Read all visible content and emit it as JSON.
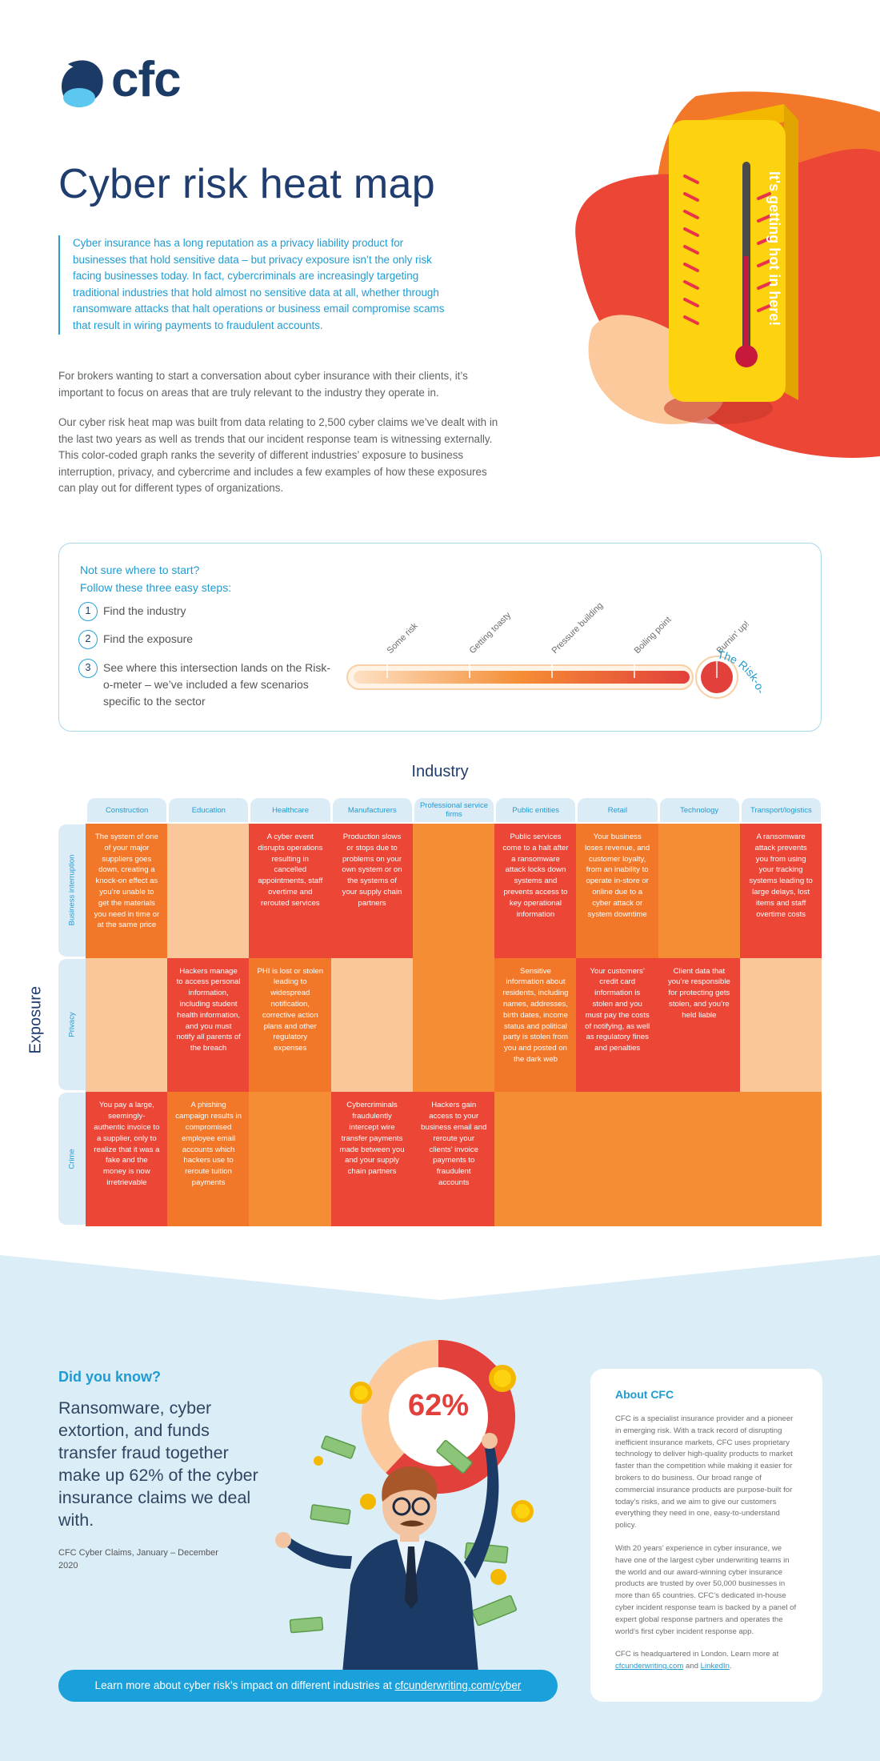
{
  "brand": {
    "name": "cfc"
  },
  "header": {
    "title": "Cyber risk heat map",
    "lead": "Cyber insurance has a long reputation as a privacy liability product for businesses that hold sensitive data – but privacy exposure isn’t the only risk facing businesses today. In fact, cybercriminals are increasingly targeting traditional industries that hold almost no sensitive data at all, whether through ransomware attacks that halt operations or business email compromise scams that result in wiring payments to fraudulent accounts.",
    "paragraph1": "For brokers wanting to start a conversation about cyber insurance with their clients, it’s important to focus on areas that are truly relevant to the industry they operate in.",
    "paragraph2": "Our cyber risk heat map was built from data relating to 2,500 cyber claims we’ve dealt with in the last two years as well as trends that our incident response team is witnessing externally. This color-coded graph ranks the severity of different industries’ exposure to business interruption, privacy, and cybercrime and includes a few examples of how these exposures can play out for different types of organizations.",
    "thermometer_text": "It's getting hot in here!"
  },
  "steps": {
    "heading_line1": "Not sure where to start?",
    "heading_line2": "Follow these three easy steps:",
    "items": [
      {
        "num": "1",
        "text": "Find the industry"
      },
      {
        "num": "2",
        "text": "Find the exposure"
      },
      {
        "num": "3",
        "text": "See where this intersection lands on the Risk-o-meter – we’ve included a few scenarios specific to the sector"
      }
    ],
    "meter": {
      "title": "The Risk-o-meter",
      "levels": [
        "Some risk",
        "Getting toasty",
        "Pressure building",
        "Boiling point",
        "Burnin' up!"
      ]
    }
  },
  "heatmap": {
    "x_title": "Industry",
    "y_title": "Exposure",
    "industries": [
      "Construction",
      "Education",
      "Healthcare",
      "Manufacturers",
      "Professional service firms",
      "Public entities",
      "Retail",
      "Technology",
      "Transport/logistics"
    ],
    "exposures": [
      "Business interruption",
      "Privacy",
      "Crime"
    ],
    "level_colors": {
      "1": "#fac79a",
      "2": "#f58d35",
      "3": "#f27729",
      "4": "#ec4636"
    },
    "levels": [
      [
        3,
        1,
        4,
        4,
        2,
        4,
        3,
        2,
        4
      ],
      [
        1,
        4,
        3,
        1,
        2,
        3,
        4,
        4,
        1
      ],
      [
        4,
        3,
        2,
        4,
        4,
        2,
        2,
        2,
        2
      ]
    ],
    "scenarios": [
      [
        "The system of one of your major suppliers goes down, creating a knock-on effect as you’re unable to get the materials you need in time or at the same price",
        "",
        "A cyber event disrupts operations resulting in cancelled appointments, staff overtime and rerouted services",
        "Production slows or stops due to problems on your own system or on the systems of your supply chain partners",
        "",
        "Public services come to a halt after a ransomware attack locks down systems and prevents access to key operational information",
        "Your business loses revenue, and customer loyalty, from an inability to operate in-store or online due to a cyber attack or system downtime",
        "",
        "A ransomware attack prevents you from using your tracking systems leading to large delays, lost items and staff overtime costs"
      ],
      [
        "",
        "Hackers manage to access personal information, including student health information, and you must notify all parents of the breach",
        "PHI is lost or stolen leading to widespread notification, corrective action plans and other regulatory expenses",
        "",
        "",
        "Sensitive information about residents, including names, addresses, birth dates, income status and political party is stolen from you and posted on the dark web",
        "Your customers’ credit card information is stolen and you must pay the costs of notifying, as well as regulatory fines and penalties",
        "Client data that you’re responsible for protecting gets stolen, and you’re held liable",
        ""
      ],
      [
        "You pay a large, seemingly-authentic invoice to a supplier, only to realize that it was a fake and the money is now irretrievable",
        "A phishing campaign results in compromised employee email accounts which hackers use to reroute tuition payments",
        "",
        "Cybercriminals fraudulently intercept wire transfer payments made between you and your supply chain partners",
        "Hackers gain access to your business email and reroute your clients’ invoice payments to fraudulent accounts",
        "",
        "",
        "",
        ""
      ]
    ]
  },
  "did_you_know": {
    "label": "Did you know?",
    "text": "Ransomware, cyber extortion, and funds transfer fraud together make up 62% of the cyber insurance claims we deal with.",
    "source": "CFC Cyber Claims, January – December 2020",
    "percent_label": "62%",
    "percent_value": 62
  },
  "cta": {
    "text": "Learn more about cyber risk’s impact on different industries at ",
    "link": "cfcunderwriting.com/cyber"
  },
  "about": {
    "title": "About CFC",
    "p1": "CFC is a specialist insurance provider and a pioneer in emerging risk. With a track record of disrupting inefficient insurance markets, CFC uses proprietary technology to deliver high-quality products to market faster than the competition while making it easier for brokers to do business. Our broad range of commercial insurance products are purpose-built for today’s risks, and we aim to give our customers everything they need in one, easy-to-understand policy.",
    "p2": "With 20 years’ experience in cyber insurance, we have one of the largest cyber underwriting teams in the world and our award-winning cyber insurance products are trusted by over 50,000 businesses in more than 65 countries. CFC’s dedicated in-house cyber incident response team is backed by a panel of expert global response partners and operates the world’s first cyber incident response app.",
    "p3_prefix": "CFC is headquartered in London. Learn more at ",
    "p3_link1": "cfcunderwriting.com",
    "p3_and": " and ",
    "p3_link2": "LinkedIn",
    "p3_suffix": "."
  },
  "colors": {
    "navy": "#1f3d6e",
    "blue": "#1f9bd2",
    "band": "#dbedf7",
    "red": "#ec4636",
    "orange": "#f58d35",
    "peach": "#fac79a",
    "yellow": "#fdd20e"
  }
}
